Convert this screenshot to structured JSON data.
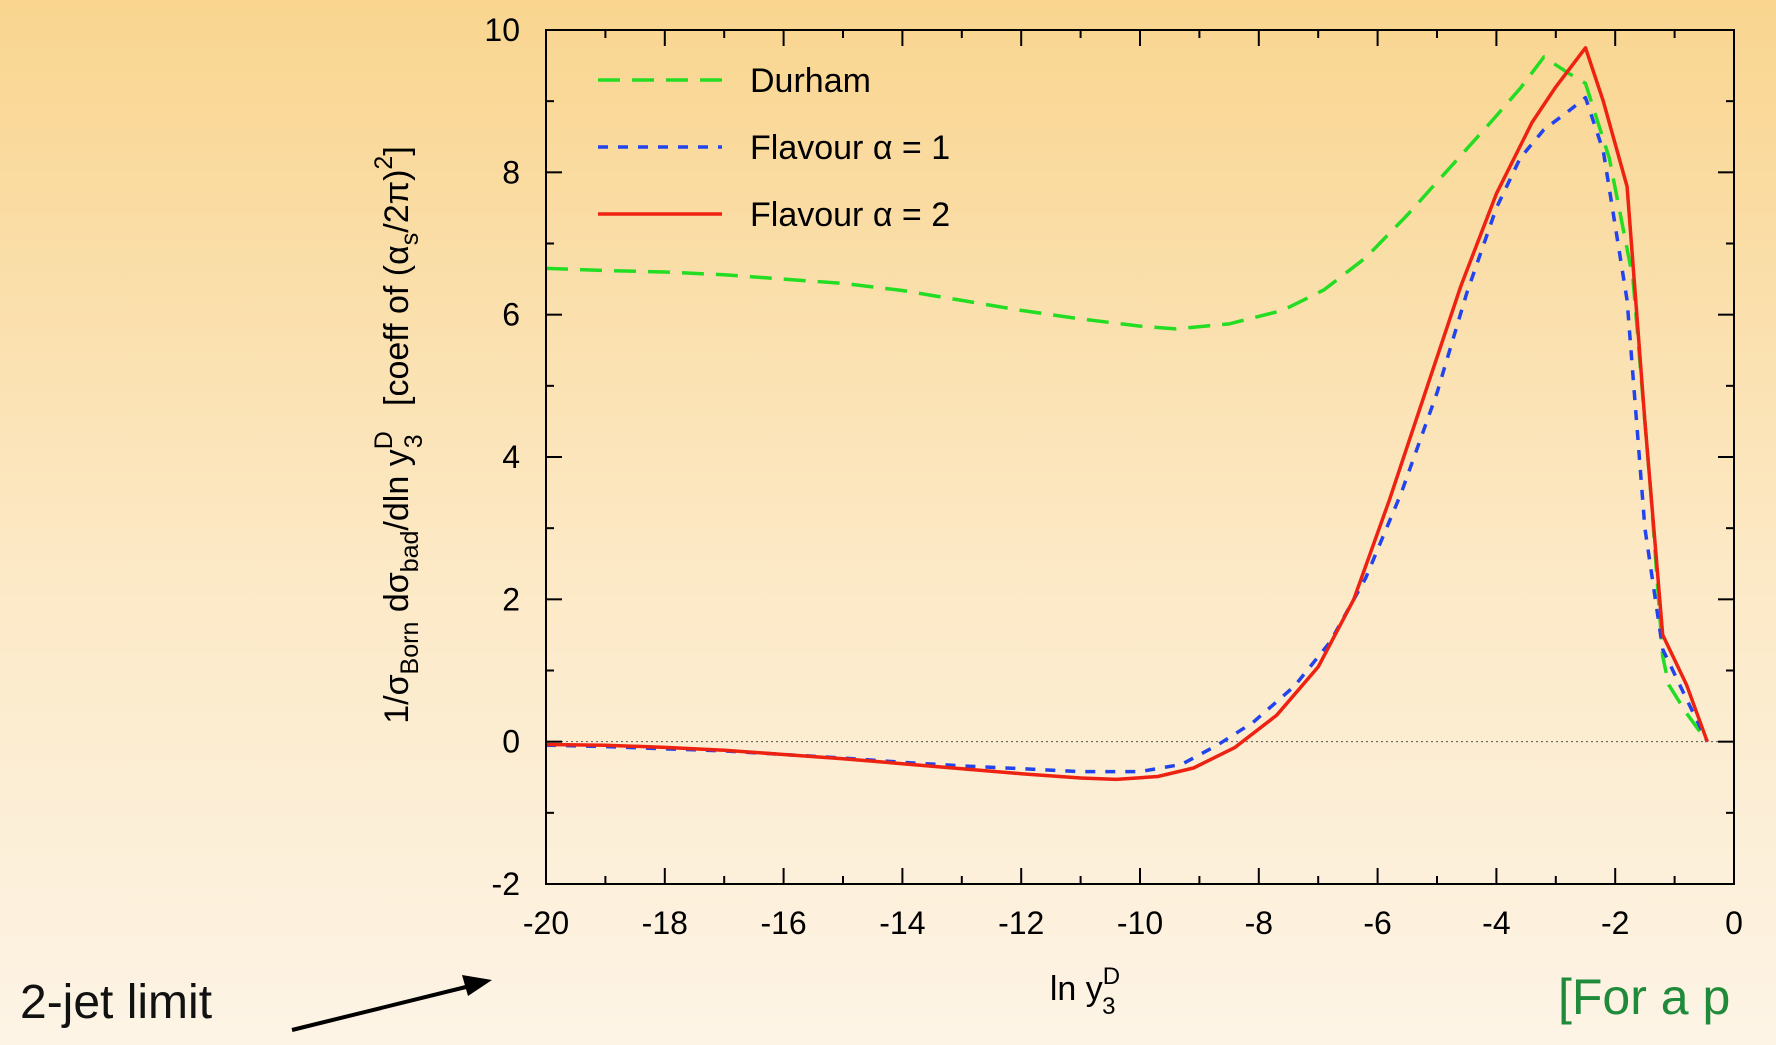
{
  "chart_data": {
    "type": "line",
    "xlabel": {
      "base": "ln y",
      "sup": "D",
      "sub": "3"
    },
    "ylabel": {
      "pre": "1/σ",
      "sub1": "Born",
      "mid": " dσ",
      "sub2": "bad",
      "mid2": "/dln y",
      "sup3": "D",
      "sub3": "3",
      "bracket_pre": "   [coeff of (α",
      "bracket_sub": "s",
      "bracket_mid": "/2π)",
      "bracket_sup": "2",
      "bracket_end": "]"
    },
    "xlim": [
      -20,
      0
    ],
    "ylim": [
      -2,
      10
    ],
    "xticks": [
      -20,
      -18,
      -16,
      -14,
      -12,
      -10,
      -8,
      -6,
      -4,
      -2,
      0
    ],
    "yticks": [
      -2,
      0,
      2,
      4,
      6,
      8,
      10
    ],
    "grid": false,
    "zero_line": true,
    "legend_position": "top-left",
    "series": [
      {
        "name": "Durham",
        "color": "#22dd22",
        "dash": "long-dash",
        "points": [
          [
            -20,
            6.65
          ],
          [
            -19,
            6.62
          ],
          [
            -18,
            6.6
          ],
          [
            -17,
            6.56
          ],
          [
            -16,
            6.5
          ],
          [
            -15,
            6.44
          ],
          [
            -14,
            6.34
          ],
          [
            -13,
            6.2
          ],
          [
            -12,
            6.06
          ],
          [
            -11,
            5.94
          ],
          [
            -10,
            5.84
          ],
          [
            -9.4,
            5.8
          ],
          [
            -8.5,
            5.87
          ],
          [
            -7.6,
            6.06
          ],
          [
            -6.9,
            6.35
          ],
          [
            -6.2,
            6.8
          ],
          [
            -5.5,
            7.4
          ],
          [
            -4.8,
            8.05
          ],
          [
            -4.1,
            8.7
          ],
          [
            -3.6,
            9.18
          ],
          [
            -3.2,
            9.62
          ],
          [
            -2.8,
            9.4
          ],
          [
            -2.5,
            9.25
          ],
          [
            -2.1,
            8.2
          ],
          [
            -1.7,
            6.5
          ],
          [
            -1.4,
            3.5
          ],
          [
            -1.2,
            1.2
          ],
          [
            -1.1,
            0.8
          ],
          [
            -0.8,
            0.4
          ],
          [
            -0.45,
            0.0
          ]
        ]
      },
      {
        "name": "Flavour α = 1",
        "color": "#2244ee",
        "dash": "short-dash",
        "points": [
          [
            -20,
            -0.05
          ],
          [
            -19,
            -0.07
          ],
          [
            -18,
            -0.1
          ],
          [
            -17,
            -0.13
          ],
          [
            -16,
            -0.18
          ],
          [
            -15,
            -0.23
          ],
          [
            -14,
            -0.29
          ],
          [
            -13,
            -0.34
          ],
          [
            -12,
            -0.38
          ],
          [
            -11,
            -0.42
          ],
          [
            -10,
            -0.42
          ],
          [
            -9.3,
            -0.32
          ],
          [
            -8.7,
            -0.05
          ],
          [
            -8.1,
            0.27
          ],
          [
            -7.4,
            0.78
          ],
          [
            -6.8,
            1.4
          ],
          [
            -6.2,
            2.3
          ],
          [
            -5.6,
            3.5
          ],
          [
            -5.0,
            4.9
          ],
          [
            -4.5,
            6.3
          ],
          [
            -4.0,
            7.5
          ],
          [
            -3.6,
            8.2
          ],
          [
            -3.2,
            8.6
          ],
          [
            -2.8,
            8.85
          ],
          [
            -2.5,
            9.05
          ],
          [
            -2.2,
            8.3
          ],
          [
            -1.8,
            6.2
          ],
          [
            -1.5,
            3.0
          ],
          [
            -1.2,
            1.3
          ],
          [
            -0.8,
            0.6
          ],
          [
            -0.45,
            0.0
          ]
        ]
      },
      {
        "name": "Flavour α = 2",
        "color": "#ee2211",
        "dash": "solid",
        "points": [
          [
            -20,
            -0.04
          ],
          [
            -19,
            -0.05
          ],
          [
            -18,
            -0.08
          ],
          [
            -17,
            -0.12
          ],
          [
            -16,
            -0.18
          ],
          [
            -15,
            -0.24
          ],
          [
            -14,
            -0.31
          ],
          [
            -13,
            -0.38
          ],
          [
            -12,
            -0.45
          ],
          [
            -11,
            -0.51
          ],
          [
            -10.4,
            -0.53
          ],
          [
            -9.7,
            -0.49
          ],
          [
            -9.1,
            -0.37
          ],
          [
            -8.4,
            -0.08
          ],
          [
            -7.7,
            0.37
          ],
          [
            -7.0,
            1.05
          ],
          [
            -6.4,
            2.0
          ],
          [
            -5.8,
            3.4
          ],
          [
            -5.2,
            4.9
          ],
          [
            -4.6,
            6.4
          ],
          [
            -4.0,
            7.7
          ],
          [
            -3.4,
            8.7
          ],
          [
            -3.0,
            9.2
          ],
          [
            -2.5,
            9.75
          ],
          [
            -2.2,
            9.0
          ],
          [
            -1.8,
            7.8
          ],
          [
            -1.5,
            4.5
          ],
          [
            -1.2,
            1.5
          ],
          [
            -0.8,
            0.8
          ],
          [
            -0.45,
            0.0
          ]
        ]
      }
    ]
  },
  "annotations": {
    "two_jet_limit": "2-jet limit",
    "note": "[For a p"
  }
}
